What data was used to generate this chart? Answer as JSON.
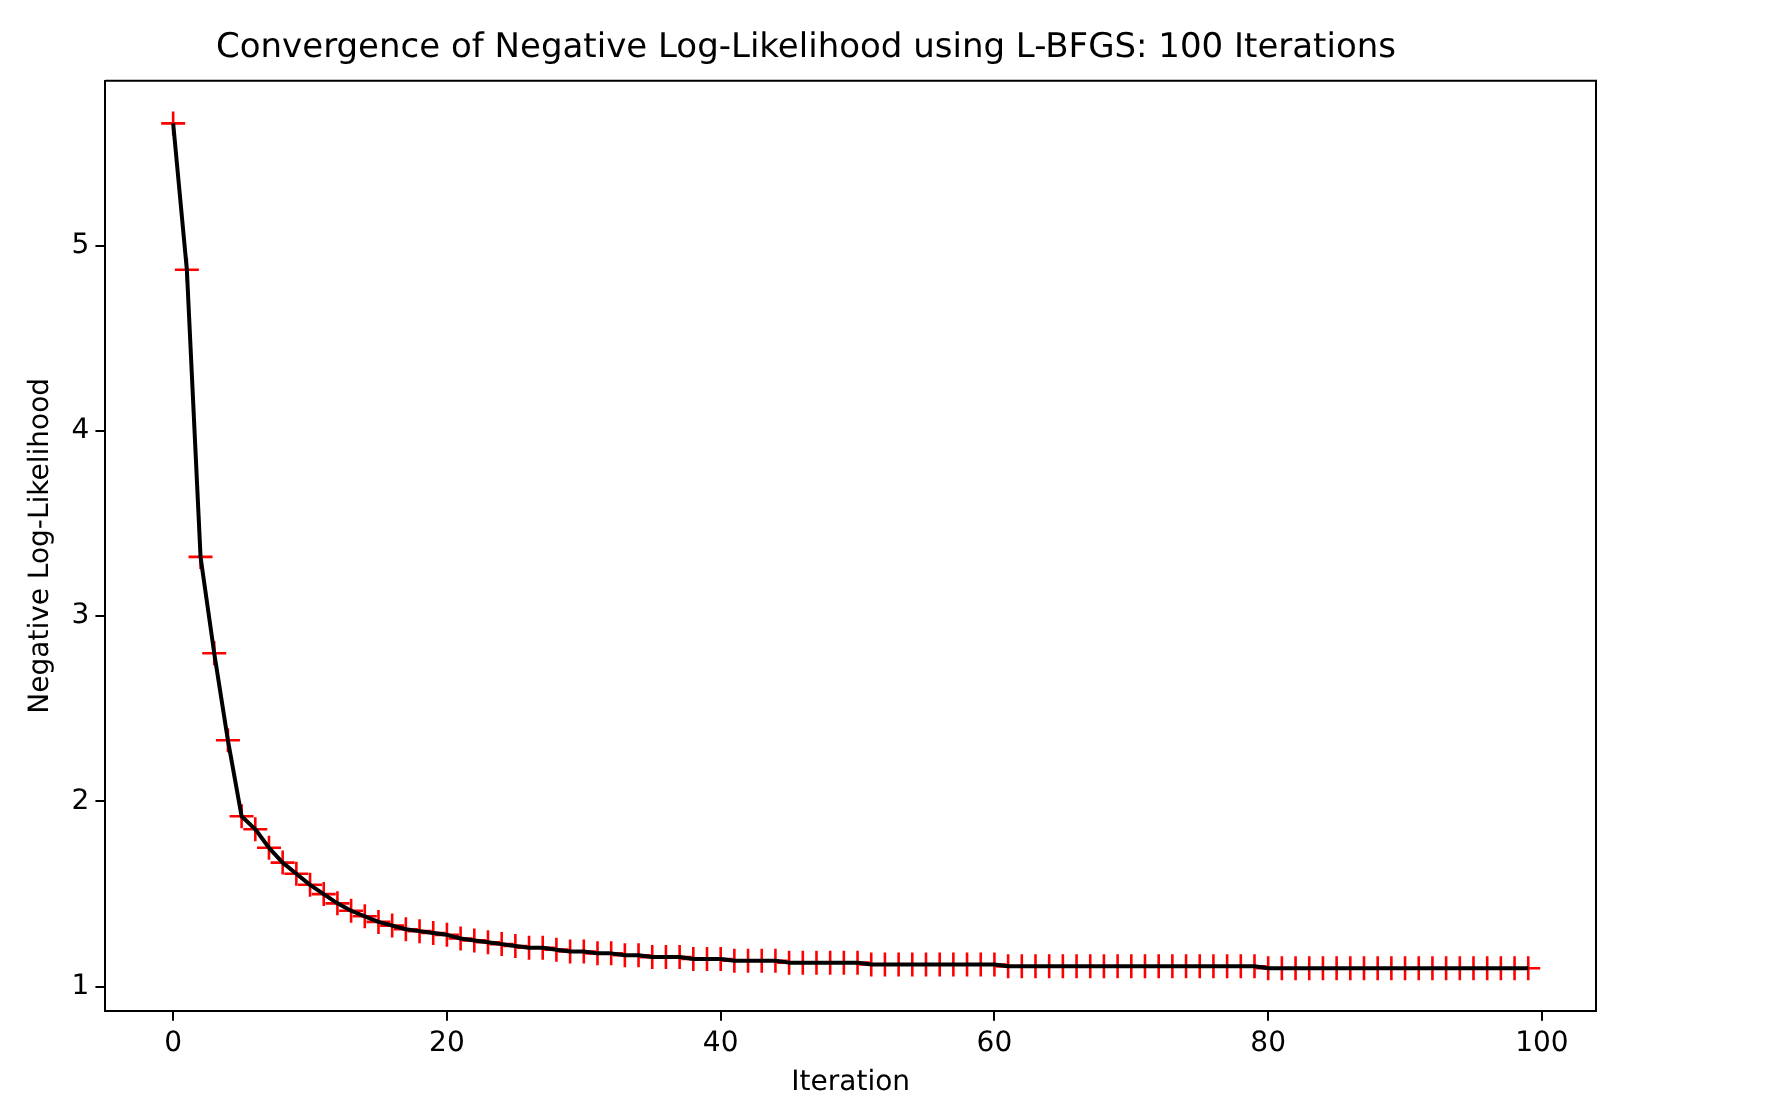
{
  "chart_data": {
    "type": "line",
    "title": "Convergence of Negative Log-Likelihood using L-BFGS: 100 Iterations",
    "xlabel": "Iteration",
    "ylabel": "Negative Log-Likelihood",
    "x": [
      0,
      1,
      2,
      3,
      4,
      5,
      6,
      7,
      8,
      9,
      10,
      11,
      12,
      13,
      14,
      15,
      16,
      17,
      18,
      19,
      20,
      21,
      22,
      23,
      24,
      25,
      26,
      27,
      28,
      29,
      30,
      31,
      32,
      33,
      34,
      35,
      36,
      37,
      38,
      39,
      40,
      41,
      42,
      43,
      44,
      45,
      46,
      47,
      48,
      49,
      50,
      51,
      52,
      53,
      54,
      55,
      56,
      57,
      58,
      59,
      60,
      61,
      62,
      63,
      64,
      65,
      66,
      67,
      68,
      69,
      70,
      71,
      72,
      73,
      74,
      75,
      76,
      77,
      78,
      79,
      80,
      81,
      82,
      83,
      84,
      85,
      86,
      87,
      88,
      89,
      90,
      91,
      92,
      93,
      94,
      95,
      96,
      97,
      98,
      99
    ],
    "series": [
      {
        "color": "#ff0000",
        "type": "scatter",
        "marker": "cross",
        "values": [
          5.66,
          4.87,
          3.32,
          2.8,
          2.33,
          1.92,
          1.85,
          1.75,
          1.67,
          1.61,
          1.55,
          1.5,
          1.45,
          1.41,
          1.38,
          1.35,
          1.33,
          1.31,
          1.3,
          1.29,
          1.28,
          1.26,
          1.25,
          1.24,
          1.23,
          1.22,
          1.21,
          1.21,
          1.2,
          1.19,
          1.19,
          1.18,
          1.18,
          1.17,
          1.17,
          1.16,
          1.16,
          1.16,
          1.15,
          1.15,
          1.15,
          1.14,
          1.14,
          1.14,
          1.14,
          1.13,
          1.13,
          1.13,
          1.13,
          1.13,
          1.13,
          1.12,
          1.12,
          1.12,
          1.12,
          1.12,
          1.12,
          1.12,
          1.12,
          1.12,
          1.12,
          1.11,
          1.11,
          1.11,
          1.11,
          1.11,
          1.11,
          1.11,
          1.11,
          1.11,
          1.11,
          1.11,
          1.11,
          1.11,
          1.11,
          1.11,
          1.11,
          1.11,
          1.11,
          1.11,
          1.1,
          1.1,
          1.1,
          1.1,
          1.1,
          1.1,
          1.1,
          1.1,
          1.1,
          1.1,
          1.1,
          1.1,
          1.1,
          1.1,
          1.1,
          1.1,
          1.1,
          1.1,
          1.1,
          1.1
        ]
      },
      {
        "color": "#000000",
        "type": "line",
        "marker": "none",
        "values": [
          5.66,
          4.87,
          3.32,
          2.8,
          2.33,
          1.92,
          1.85,
          1.75,
          1.67,
          1.61,
          1.55,
          1.5,
          1.45,
          1.41,
          1.38,
          1.35,
          1.33,
          1.31,
          1.3,
          1.29,
          1.28,
          1.26,
          1.25,
          1.24,
          1.23,
          1.22,
          1.21,
          1.21,
          1.2,
          1.19,
          1.19,
          1.18,
          1.18,
          1.17,
          1.17,
          1.16,
          1.16,
          1.16,
          1.15,
          1.15,
          1.15,
          1.14,
          1.14,
          1.14,
          1.14,
          1.13,
          1.13,
          1.13,
          1.13,
          1.13,
          1.13,
          1.12,
          1.12,
          1.12,
          1.12,
          1.12,
          1.12,
          1.12,
          1.12,
          1.12,
          1.12,
          1.11,
          1.11,
          1.11,
          1.11,
          1.11,
          1.11,
          1.11,
          1.11,
          1.11,
          1.11,
          1.11,
          1.11,
          1.11,
          1.11,
          1.11,
          1.11,
          1.11,
          1.11,
          1.11,
          1.1,
          1.1,
          1.1,
          1.1,
          1.1,
          1.1,
          1.1,
          1.1,
          1.1,
          1.1,
          1.1,
          1.1,
          1.1,
          1.1,
          1.1,
          1.1,
          1.1,
          1.1,
          1.1,
          1.1
        ]
      }
    ],
    "line_style": "solid",
    "grid": false,
    "legend": false,
    "xlim": [
      -4.95,
      103.95
    ],
    "xticks": [
      0,
      20,
      40,
      60,
      80,
      100
    ],
    "ylim": [
      0.87,
      5.89
    ],
    "yticks": [
      1,
      2,
      3,
      4,
      5
    ]
  }
}
